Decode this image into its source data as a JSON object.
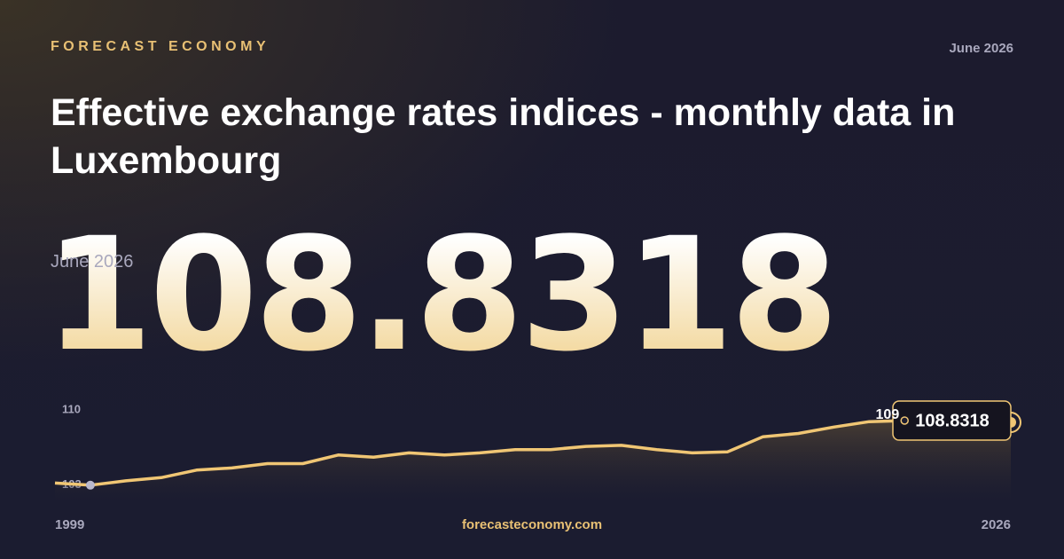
{
  "header": {
    "brand": "FORECAST ECONOMY",
    "date": "June 2026",
    "title": "Effective exchange rates indices - monthly data in Luxembourg"
  },
  "footer": {
    "site": "forecasteconomy.com"
  },
  "chart_data": {
    "type": "line",
    "x": [
      1999,
      2000,
      2001,
      2002,
      2003,
      2004,
      2005,
      2006,
      2007,
      2008,
      2009,
      2010,
      2011,
      2012,
      2013,
      2014,
      2015,
      2016,
      2017,
      2018,
      2019,
      2020,
      2021,
      2022,
      2023,
      2024,
      2025,
      2026
    ],
    "series": [
      {
        "color": "#f0c674",
        "values": [
          103.2,
          103.0,
          103.4,
          103.7,
          104.4,
          104.6,
          105.0,
          105.0,
          105.8,
          105.6,
          106.0,
          105.8,
          106.0,
          106.3,
          106.3,
          106.6,
          106.7,
          106.3,
          106.0,
          106.1,
          107.5,
          107.8,
          108.4,
          108.9,
          109.0,
          108.95,
          108.9,
          108.8318
        ]
      }
    ],
    "max": {
      "x": 2023,
      "value": 109
    },
    "min": {
      "x": 2000,
      "value": 103
    },
    "xlim": [
      1999,
      2026
    ],
    "xticks": [
      1999,
      2026
    ],
    "ylim": [
      101.5,
      111.8
    ],
    "yticks": [
      103,
      110
    ]
  }
}
